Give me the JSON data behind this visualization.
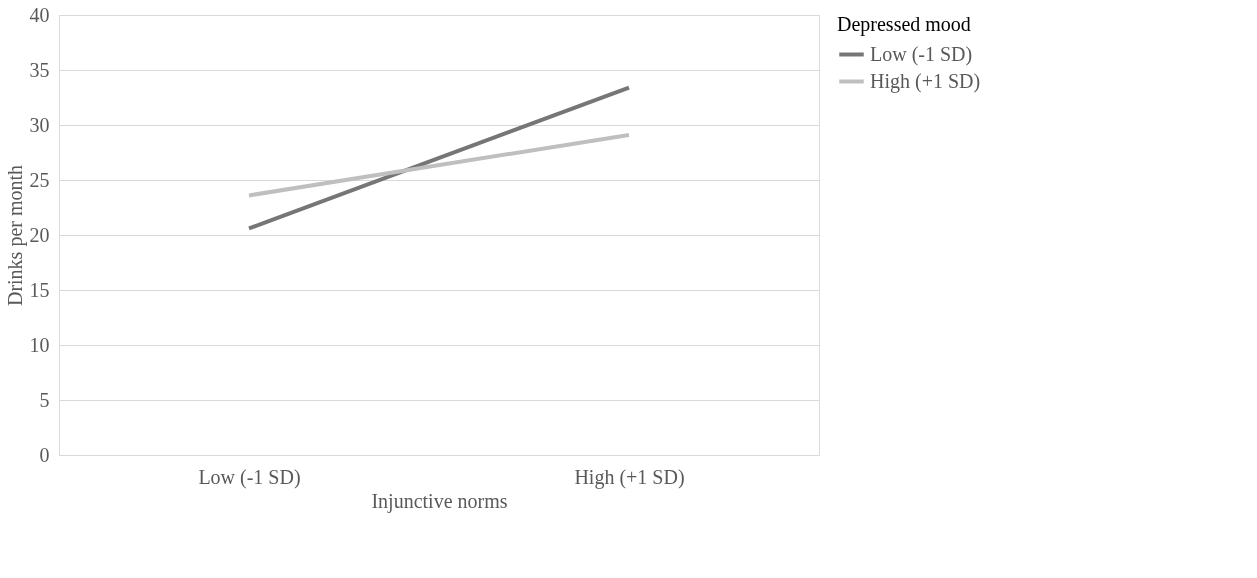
{
  "chart_data": {
    "type": "line",
    "xlabel": "Injunctive  norms",
    "ylabel": "Drinks per month",
    "legend_title": "Depressed mood",
    "categories": [
      "Low (-1 SD)",
      "High (+1 SD)"
    ],
    "series": [
      {
        "name": "Low (-1 SD)",
        "color": "#767676",
        "values": [
          20.6,
          33.4
        ]
      },
      {
        "name": "High (+1 SD)",
        "color": "#bfbfbf",
        "values": [
          23.6,
          29.1
        ]
      }
    ],
    "ylim": [
      0,
      40
    ],
    "yticks": [
      0,
      5,
      10,
      15,
      20,
      25,
      30,
      35,
      40
    ],
    "grid": "y",
    "legend": "right",
    "marker": "none",
    "line_style": "solid"
  }
}
